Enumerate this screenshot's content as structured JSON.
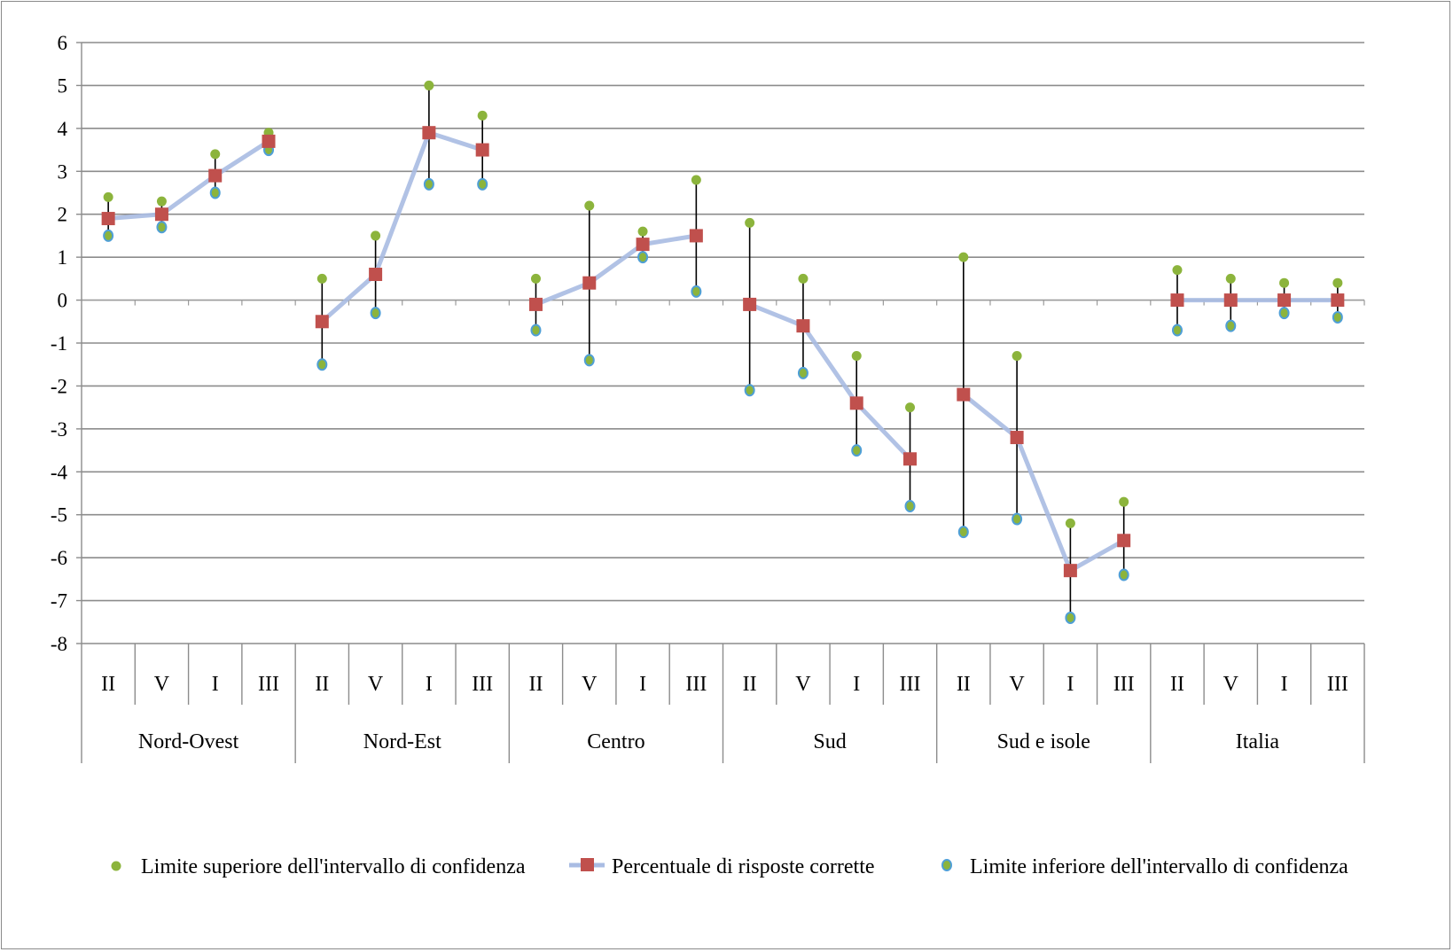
{
  "chart_data": {
    "type": "line",
    "title": "",
    "xlabel": "",
    "ylabel": "",
    "ylim": [
      -8,
      6
    ],
    "yticks": [
      6,
      5,
      4,
      3,
      2,
      1,
      0,
      -1,
      -2,
      -3,
      -4,
      -5,
      -6,
      -7,
      -8
    ],
    "grid": true,
    "legend_position": "bottom",
    "groups": [
      {
        "name": "Nord-Ovest",
        "categories": [
          "II",
          "V",
          "I",
          "III"
        ]
      },
      {
        "name": "Nord-Est",
        "categories": [
          "II",
          "V",
          "I",
          "III"
        ]
      },
      {
        "name": "Centro",
        "categories": [
          "II",
          "V",
          "I",
          "III"
        ]
      },
      {
        "name": "Sud",
        "categories": [
          "II",
          "V",
          "I",
          "III"
        ]
      },
      {
        "name": "Sud e isole",
        "categories": [
          "II",
          "V",
          "I",
          "III"
        ]
      },
      {
        "name": "Italia",
        "categories": [
          "II",
          "V",
          "I",
          "III"
        ]
      }
    ],
    "series": [
      {
        "name": "Limite superiore dell'intervallo di confidenza",
        "marker": "circle",
        "color": "#8cb43c",
        "values": [
          2.4,
          2.3,
          3.4,
          3.9,
          0.5,
          1.5,
          5.0,
          4.3,
          0.5,
          2.2,
          1.6,
          2.8,
          1.8,
          0.5,
          -1.3,
          -2.5,
          1.0,
          -1.3,
          -5.2,
          -4.7,
          0.7,
          0.5,
          0.4,
          0.4
        ]
      },
      {
        "name": "Percentuale di risposte corrette",
        "marker": "square",
        "color": "#c0504d",
        "line_color": "#a9bce3",
        "values": [
          1.9,
          2.0,
          2.9,
          3.7,
          -0.5,
          0.6,
          3.9,
          3.5,
          -0.1,
          0.4,
          1.3,
          1.5,
          -0.1,
          -0.6,
          -2.4,
          -3.7,
          -2.2,
          -3.2,
          -6.3,
          -5.6,
          0.0,
          0.0,
          0.0,
          0.0
        ]
      },
      {
        "name": "Limite inferiore dell'intervallo di confidenza",
        "marker": "circle-outline",
        "color": "#8cb43c",
        "outline_color": "#4f9fd6",
        "values": [
          1.5,
          1.7,
          2.5,
          3.5,
          -1.5,
          -0.3,
          2.7,
          2.7,
          -0.7,
          -1.4,
          1.0,
          0.2,
          -2.1,
          -1.7,
          -3.5,
          -4.8,
          -5.4,
          -5.1,
          -7.4,
          -6.4,
          -0.7,
          -0.6,
          -0.3,
          -0.4
        ]
      }
    ]
  },
  "legend": {
    "upper_label": "Limite superiore dell'intervallo di confidenza",
    "mid_label": "Percentuale di risposte corrette",
    "lower_label": "Limite inferiore dell'intervallo di confidenza"
  }
}
